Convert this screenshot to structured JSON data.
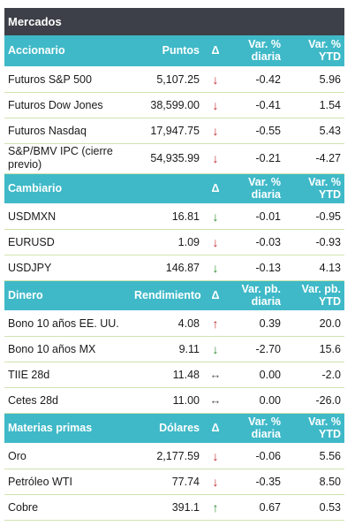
{
  "title": "Mercados",
  "sections": [
    {
      "headers": [
        "Accionario",
        "Puntos",
        "Δ",
        "Var. % diaria",
        "Var. % YTD"
      ],
      "rows": [
        {
          "name": "Futuros S&P 500",
          "value": "5,107.25",
          "dir": "down",
          "daily": "-0.42",
          "ytd": "5.96"
        },
        {
          "name": "Futuros Dow Jones",
          "value": "38,599.00",
          "dir": "down",
          "daily": "-0.41",
          "ytd": "1.54"
        },
        {
          "name": "Futuros Nasdaq",
          "value": "17,947.75",
          "dir": "down",
          "daily": "-0.55",
          "ytd": "5.43"
        },
        {
          "name": "S&P/BMV IPC (cierre previo)",
          "value": "54,935.99",
          "dir": "down",
          "daily": "-0.21",
          "ytd": "-4.27"
        }
      ]
    },
    {
      "headers": [
        "Cambiario",
        "",
        "Δ",
        "Var. % diaria",
        "Var. % YTD"
      ],
      "rows": [
        {
          "name": "USDMXN",
          "value": "16.81",
          "dir": "down-green",
          "daily": "-0.01",
          "ytd": "-0.95"
        },
        {
          "name": "EURUSD",
          "value": "1.09",
          "dir": "down",
          "daily": "-0.03",
          "ytd": "-0.93"
        },
        {
          "name": "USDJPY",
          "value": "146.87",
          "dir": "down-green",
          "daily": "-0.13",
          "ytd": "4.13"
        }
      ]
    },
    {
      "headers": [
        "Dinero",
        "Rendimiento",
        "Δ",
        "Var. pb. diaria",
        "Var. pb. YTD"
      ],
      "rows": [
        {
          "name": "Bono 10 años EE. UU.",
          "value": "4.08",
          "dir": "up-red",
          "daily": "0.39",
          "ytd": "20.0"
        },
        {
          "name": "Bono 10 años MX",
          "value": "9.11",
          "dir": "down-green",
          "daily": "-2.70",
          "ytd": "15.6"
        },
        {
          "name": "TIIE 28d",
          "value": "11.48",
          "dir": "flat",
          "daily": "0.00",
          "ytd": "-2.0"
        },
        {
          "name": "Cetes 28d",
          "value": "11.00",
          "dir": "flat",
          "daily": "0.00",
          "ytd": "-26.0"
        }
      ]
    },
    {
      "headers": [
        "Materias primas",
        "Dólares",
        "Δ",
        "Var. % diaria",
        "Var. % YTD"
      ],
      "rows": [
        {
          "name": "Oro",
          "value": "2,177.59",
          "dir": "down",
          "daily": "-0.06",
          "ytd": "5.56"
        },
        {
          "name": "Petróleo WTI",
          "value": "77.74",
          "dir": "down",
          "daily": "-0.35",
          "ytd": "8.50"
        },
        {
          "name": "Cobre",
          "value": "391.1",
          "dir": "up-green",
          "daily": "0.67",
          "ytd": "0.53"
        }
      ]
    }
  ],
  "arrow_colors": {
    "down": "#c0282d",
    "up_green": "#2e8b2e",
    "up_red": "#c0282d",
    "flat": "#555555"
  }
}
